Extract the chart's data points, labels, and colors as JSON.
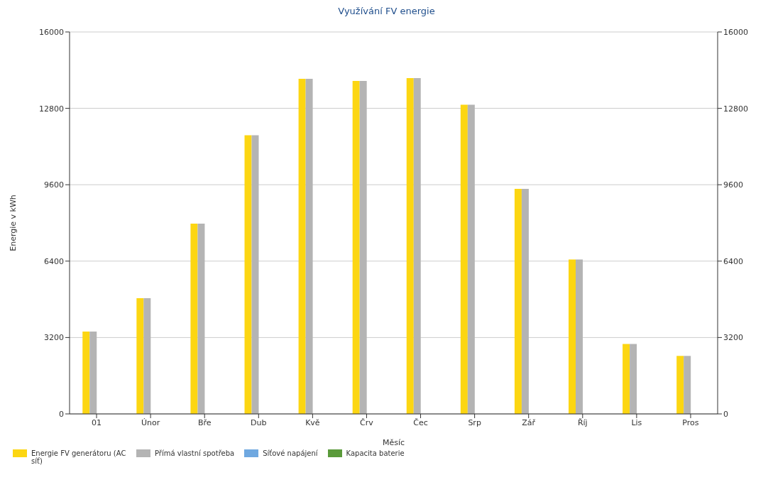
{
  "chart_data": {
    "type": "bar",
    "title": "Využívání FV energie",
    "xlabel": "Měsíc",
    "ylabel": "Energie v kWh",
    "categories": [
      "01",
      "Únor",
      "Bře",
      "Dub",
      "Kvě",
      "Črv",
      "Čec",
      "Srp",
      "Zář",
      "Říj",
      "Lis",
      "Pros"
    ],
    "series": [
      {
        "name": "Energie FV generátoru (AC síť)",
        "color": "#fcd612",
        "values": [
          3450,
          4850,
          7970,
          11670,
          14040,
          13950,
          14070,
          12950,
          9430,
          6470,
          2930,
          2430
        ]
      },
      {
        "name": "Přímá vlastní spotřeba",
        "color": "#b4b4b4",
        "values": [
          3450,
          4850,
          7970,
          11670,
          14040,
          13950,
          14070,
          12950,
          9430,
          6470,
          2930,
          2430
        ]
      },
      {
        "name": "Síťové napájení",
        "color": "#6fa8e0",
        "values": [
          null,
          null,
          null,
          null,
          null,
          null,
          null,
          null,
          null,
          null,
          null,
          null
        ]
      },
      {
        "name": "Kapacita baterie",
        "color": "#5a9a3a",
        "values": [
          null,
          null,
          null,
          null,
          null,
          null,
          null,
          null,
          null,
          null,
          null,
          null
        ]
      }
    ],
    "ylim": [
      0,
      16000
    ],
    "yticks": [
      0,
      3200,
      6400,
      9600,
      12800,
      16000
    ],
    "y2lim": [
      0,
      16000
    ],
    "y2ticks": [
      0,
      3200,
      6400,
      9600,
      12800,
      16000
    ],
    "grid": "y",
    "legend": "bottom left"
  }
}
